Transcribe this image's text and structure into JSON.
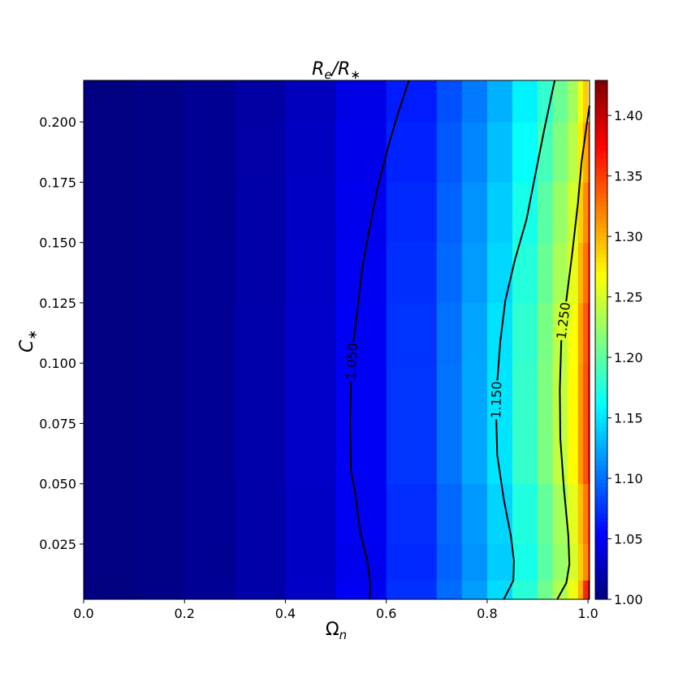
{
  "chart_data": {
    "type": "heatmap",
    "title": [
      "R",
      "e",
      "/R",
      "∗"
    ],
    "x_label": [
      "Ω",
      "n"
    ],
    "y_label": [
      "C",
      "∗"
    ],
    "colormap": "jet",
    "xbins": [
      0,
      0.1,
      0.2,
      0.3,
      0.4,
      0.5,
      0.6,
      0.7,
      0.75,
      0.8,
      0.85,
      0.9,
      0.93,
      0.96,
      0.98,
      0.99,
      1.0,
      1.003
    ],
    "ybins": [
      0.0021,
      0.01,
      0.025,
      0.05,
      0.075,
      0.1,
      0.125,
      0.15,
      0.175,
      0.2,
      0.2172
    ],
    "z": [
      [
        1.0,
        1.003,
        1.009,
        1.017,
        1.03,
        1.049,
        1.074,
        1.099,
        1.12,
        1.146,
        1.178,
        1.208,
        1.235,
        1.261,
        1.3,
        1.36,
        1.43
      ],
      [
        1.0,
        1.003,
        1.008,
        1.017,
        1.029,
        1.047,
        1.071,
        1.095,
        1.115,
        1.14,
        1.17,
        1.199,
        1.225,
        1.25,
        1.288,
        1.316,
        1.353
      ],
      [
        1.0,
        1.003,
        1.009,
        1.017,
        1.029,
        1.048,
        1.072,
        1.097,
        1.118,
        1.143,
        1.174,
        1.203,
        1.23,
        1.256,
        1.295,
        1.323,
        1.361
      ],
      [
        1.0,
        1.003,
        1.009,
        1.018,
        1.031,
        1.05,
        1.076,
        1.102,
        1.124,
        1.15,
        1.183,
        1.214,
        1.242,
        1.269,
        1.31,
        1.34,
        1.38
      ],
      [
        1.0,
        1.003,
        1.009,
        1.018,
        1.031,
        1.05,
        1.076,
        1.102,
        1.124,
        1.15,
        1.183,
        1.214,
        1.242,
        1.269,
        1.31,
        1.34,
        1.38
      ],
      [
        1.0,
        1.003,
        1.009,
        1.018,
        1.031,
        1.05,
        1.075,
        1.101,
        1.123,
        1.149,
        1.181,
        1.212,
        1.24,
        1.266,
        1.307,
        1.337,
        1.376
      ],
      [
        1.0,
        1.003,
        1.009,
        1.017,
        1.03,
        1.048,
        1.073,
        1.098,
        1.119,
        1.144,
        1.176,
        1.205,
        1.232,
        1.258,
        1.298,
        1.326,
        1.365
      ],
      [
        1.0,
        1.003,
        1.008,
        1.017,
        1.029,
        1.047,
        1.071,
        1.095,
        1.115,
        1.14,
        1.17,
        1.199,
        1.225,
        1.25,
        1.288,
        1.316,
        1.353
      ],
      [
        1.0,
        1.003,
        1.008,
        1.016,
        1.028,
        1.045,
        1.068,
        1.091,
        1.11,
        1.134,
        1.163,
        1.19,
        1.215,
        1.239,
        1.276,
        1.303,
        1.338
      ],
      [
        1.0,
        1.003,
        1.008,
        1.015,
        1.026,
        1.043,
        1.065,
        1.087,
        1.105,
        1.128,
        1.156,
        1.182,
        1.206,
        1.229,
        1.264,
        1.289,
        null
      ]
    ],
    "xlim": [
      0,
      1.003
    ],
    "ylim": [
      0.0021,
      0.2172
    ],
    "clim": [
      1.0,
      1.429
    ],
    "xticks": [
      {
        "value": 0,
        "label": "0.0"
      },
      0.2,
      0.4,
      0.6,
      0.8,
      {
        "value": 1,
        "label": "1.0"
      }
    ],
    "yticks": [
      0.025,
      {
        "value": 0.05,
        "label": "0.050"
      },
      0.075,
      {
        "value": 0.1,
        "label": "0.100"
      },
      0.125,
      {
        "value": 0.15,
        "label": "0.150"
      },
      0.175,
      {
        "value": 0.2,
        "label": "0.200"
      }
    ],
    "cticks": [
      {
        "value": 1.0,
        "label": "1.00"
      },
      {
        "value": 1.05,
        "label": "1.05"
      },
      {
        "value": 1.1,
        "label": "1.10"
      },
      {
        "value": 1.15,
        "label": "1.15"
      },
      {
        "value": 1.2,
        "label": "1.20"
      },
      {
        "value": 1.25,
        "label": "1.25"
      },
      {
        "value": 1.3,
        "label": "1.30"
      },
      {
        "value": 1.35,
        "label": "1.35"
      },
      {
        "value": 1.4,
        "label": "1.40"
      }
    ],
    "contours": [
      {
        "level": 1.05,
        "label": "1.050",
        "color": "#000000",
        "x": [
          0.567,
          0.568,
          0.562,
          0.548,
          0.539,
          0.53,
          0.528,
          0.53,
          0.535,
          0.543,
          0.552,
          0.567,
          0.583,
          0.604,
          0.623,
          0.645
        ],
        "y": [
          0.0021,
          0.0089,
          0.0183,
          0.0301,
          0.0452,
          0.0553,
          0.0755,
          0.0923,
          0.1091,
          0.1226,
          0.1394,
          0.1562,
          0.1731,
          0.1899,
          0.2034,
          0.2172
        ]
      },
      {
        "level": 1.15,
        "label": "1.150",
        "color": "#000000",
        "x": [
          0.833,
          0.852,
          0.853,
          0.847,
          0.833,
          0.82,
          0.818,
          0.82,
          0.826,
          0.836,
          0.855,
          0.878,
          0.897,
          0.913,
          0.934
        ],
        "y": [
          0.0021,
          0.0099,
          0.0183,
          0.0284,
          0.0435,
          0.062,
          0.0772,
          0.0923,
          0.1091,
          0.126,
          0.1428,
          0.1596,
          0.1798,
          0.1966,
          0.2172
        ]
      },
      {
        "level": 1.25,
        "label": "1.250",
        "color": "#000000",
        "x": [
          0.939,
          0.957,
          0.963,
          0.961,
          0.952,
          0.945,
          0.944,
          0.947,
          0.957,
          0.969,
          0.98,
          0.987,
          0.997,
          1.003
        ],
        "y": [
          0.0021,
          0.0089,
          0.0166,
          0.0284,
          0.0486,
          0.0688,
          0.089,
          0.1091,
          0.126,
          0.1462,
          0.1663,
          0.1832,
          0.1983,
          0.2067
        ]
      }
    ]
  }
}
